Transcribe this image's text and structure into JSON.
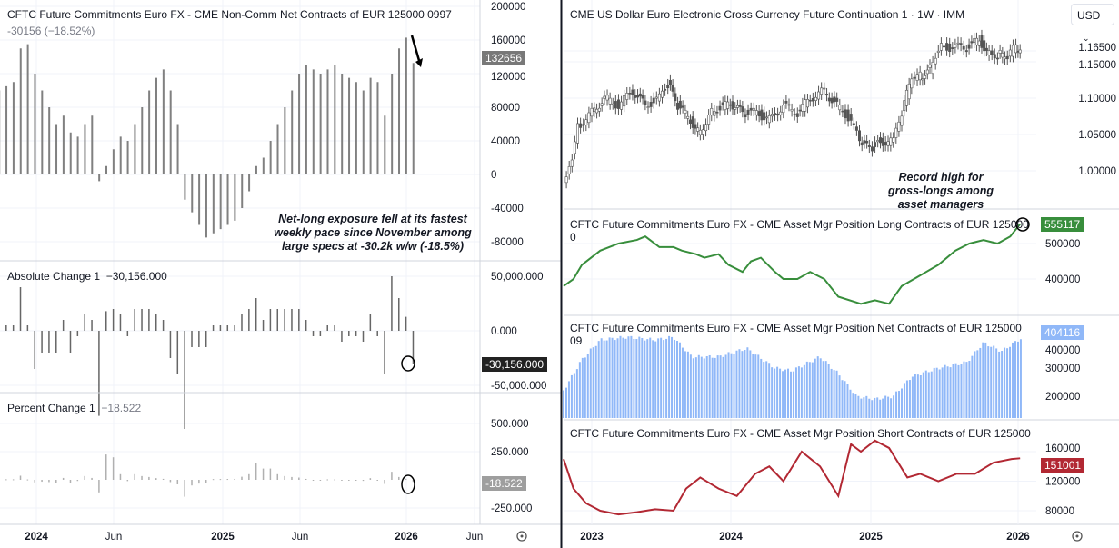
{
  "left": {
    "title": "CFTC Future Commitments Euro FX - CME Non-Comm Net Contracts of EUR 125000 0997",
    "subtitle": "-30156 (−18.52%)",
    "last_tag": "132656",
    "abs_title": "Absolute Change 1",
    "abs_value": "−30,156.000",
    "abs_tag": "-30,156.000",
    "pct_title": "Percent Change 1",
    "pct_value": "−18.522",
    "pct_tag": "-18.522",
    "note": "Net-long exposure fell at its fastest weekly pace since November among large specs at -30.2k w/w (-18.5%)",
    "time_ticks": [
      "2024",
      "Jun",
      "2025",
      "Jun",
      "2026",
      "Jun"
    ]
  },
  "right": {
    "title": "CME US Dollar Euro Electronic Cross Currency Future Continuation 1 · 1W · IMM",
    "currency": "USD",
    "long_title": "CFTC Future Commitments Euro FX - CME Asset Mgr Position Long Contracts of EUR 125000 0",
    "long_tag": "555117",
    "net_title": "CFTC Future Commitments Euro FX - CME Asset Mgr Position Net Contracts of EUR 125000 09",
    "net_tag": "404116",
    "short_title": "CFTC Future Commitments Euro FX - CME Asset Mgr Position Short Contracts of EUR 125000",
    "short_tag": "151001",
    "note": "Record high for gross-longs among asset managers",
    "time_ticks": [
      "2023",
      "2024",
      "2025",
      "2026"
    ]
  },
  "colors": {
    "bars": "#808080",
    "long": "#388e3c",
    "net": "#90b8f8",
    "short": "#b22833",
    "candle": "#555555"
  },
  "chart_data": [
    {
      "type": "bar",
      "title": "CFTC Future Commitments Euro FX - CME Non-Comm Net Contracts of EUR 125000 0997",
      "x_start_year": 2023.8,
      "x_step_years": 0.0385,
      "yticks": [
        200000,
        160000,
        120000,
        80000,
        40000,
        0,
        -40000,
        -80000
      ],
      "ylim": [
        -100000,
        210000
      ],
      "values": [
        100000,
        105000,
        110000,
        150000,
        155000,
        120000,
        100000,
        80000,
        60000,
        70000,
        50000,
        45000,
        60000,
        70000,
        -8000,
        10000,
        30000,
        45000,
        40000,
        60000,
        80000,
        100000,
        115000,
        125000,
        100000,
        60000,
        -30000,
        -45000,
        -60000,
        -75000,
        -70000,
        -65000,
        -60000,
        -55000,
        -40000,
        -20000,
        10000,
        20000,
        40000,
        60000,
        80000,
        100000,
        120000,
        130000,
        125000,
        120000,
        125000,
        130000,
        120000,
        115000,
        110000,
        100000,
        115000,
        110000,
        70000,
        120000,
        150000,
        162812,
        132656
      ]
    },
    {
      "type": "bar",
      "title": "Absolute Change 1",
      "yticks": [
        50000,
        0,
        -50000
      ],
      "last": -30156
    },
    {
      "type": "bar",
      "title": "Percent Change 1",
      "yticks": [
        500,
        250,
        -250
      ],
      "last": -18.522
    },
    {
      "type": "candlestick",
      "title": "CME US Dollar Euro Electronic Cross Currency Future Continuation 1 · 1W · IMM",
      "yticks": [
        1.165,
        1.15,
        1.1,
        1.05,
        1.0
      ],
      "points": [
        [
          2022.8,
          0.98
        ],
        [
          2022.84,
          1.0
        ],
        [
          2022.9,
          1.06
        ],
        [
          2023.0,
          1.08
        ],
        [
          2023.09,
          1.1
        ],
        [
          2023.19,
          1.09
        ],
        [
          2023.29,
          1.11
        ],
        [
          2023.38,
          1.09
        ],
        [
          2023.48,
          1.1
        ],
        [
          2023.54,
          1.12
        ],
        [
          2023.61,
          1.09
        ],
        [
          2023.7,
          1.07
        ],
        [
          2023.77,
          1.05
        ],
        [
          2023.83,
          1.08
        ],
        [
          2023.93,
          1.09
        ],
        [
          2024.0,
          1.09
        ],
        [
          2024.07,
          1.08
        ],
        [
          2024.17,
          1.08
        ],
        [
          2024.26,
          1.07
        ],
        [
          2024.36,
          1.09
        ],
        [
          2024.46,
          1.08
        ],
        [
          2024.55,
          1.1
        ],
        [
          2024.65,
          1.11
        ],
        [
          2024.74,
          1.09
        ],
        [
          2024.84,
          1.07
        ],
        [
          2024.9,
          1.04
        ],
        [
          2024.97,
          1.03
        ],
        [
          2025.03,
          1.04
        ],
        [
          2025.14,
          1.04
        ],
        [
          2025.2,
          1.08
        ],
        [
          2025.27,
          1.13
        ],
        [
          2025.33,
          1.13
        ],
        [
          2025.4,
          1.14
        ],
        [
          2025.46,
          1.17
        ],
        [
          2025.56,
          1.17
        ],
        [
          2025.66,
          1.17
        ],
        [
          2025.75,
          1.18
        ],
        [
          2025.82,
          1.16
        ],
        [
          2025.88,
          1.16
        ],
        [
          2025.95,
          1.16
        ],
        [
          2026.01,
          1.17
        ],
        [
          2026.04,
          1.165
        ]
      ]
    },
    {
      "type": "line",
      "title": "Asset Mgr Position Long",
      "yticks": [
        500000,
        400000
      ],
      "points": [
        [
          2022.8,
          380000
        ],
        [
          2022.87,
          400000
        ],
        [
          2022.93,
          440000
        ],
        [
          2023.06,
          480000
        ],
        [
          2023.19,
          500000
        ],
        [
          2023.32,
          510000
        ],
        [
          2023.38,
          520000
        ],
        [
          2023.48,
          490000
        ],
        [
          2023.58,
          490000
        ],
        [
          2023.64,
          480000
        ],
        [
          2023.74,
          470000
        ],
        [
          2023.8,
          460000
        ],
        [
          2023.9,
          470000
        ],
        [
          2023.97,
          440000
        ],
        [
          2024.07,
          420000
        ],
        [
          2024.13,
          450000
        ],
        [
          2024.2,
          460000
        ],
        [
          2024.3,
          420000
        ],
        [
          2024.36,
          400000
        ],
        [
          2024.46,
          400000
        ],
        [
          2024.55,
          420000
        ],
        [
          2024.65,
          400000
        ],
        [
          2024.75,
          350000
        ],
        [
          2024.91,
          330000
        ],
        [
          2025.01,
          340000
        ],
        [
          2025.11,
          330000
        ],
        [
          2025.2,
          380000
        ],
        [
          2025.33,
          410000
        ],
        [
          2025.46,
          440000
        ],
        [
          2025.58,
          480000
        ],
        [
          2025.68,
          500000
        ],
        [
          2025.78,
          510000
        ],
        [
          2025.88,
          500000
        ],
        [
          2025.97,
          520000
        ],
        [
          2026.04,
          555117
        ]
      ]
    },
    {
      "type": "bar",
      "title": "Asset Mgr Position Net",
      "yticks": [
        400000,
        300000,
        200000
      ],
      "points": [
        [
          2022.8,
          220000
        ],
        [
          2022.93,
          330000
        ],
        [
          2023.06,
          400000
        ],
        [
          2023.25,
          410000
        ],
        [
          2023.45,
          400000
        ],
        [
          2023.58,
          410000
        ],
        [
          2023.71,
          340000
        ],
        [
          2023.9,
          340000
        ],
        [
          2024.1,
          370000
        ],
        [
          2024.3,
          300000
        ],
        [
          2024.42,
          290000
        ],
        [
          2024.62,
          340000
        ],
        [
          2024.75,
          280000
        ],
        [
          2024.88,
          200000
        ],
        [
          2025.01,
          190000
        ],
        [
          2025.14,
          200000
        ],
        [
          2025.27,
          270000
        ],
        [
          2025.46,
          300000
        ],
        [
          2025.66,
          320000
        ],
        [
          2025.78,
          390000
        ],
        [
          2025.91,
          360000
        ],
        [
          2026.04,
          404116
        ]
      ]
    },
    {
      "type": "line",
      "title": "Asset Mgr Position Short",
      "yticks": [
        160000,
        120000,
        80000
      ],
      "points": [
        [
          2022.8,
          150000
        ],
        [
          2022.87,
          110000
        ],
        [
          2022.96,
          90000
        ],
        [
          2023.06,
          80000
        ],
        [
          2023.19,
          75000
        ],
        [
          2023.32,
          78000
        ],
        [
          2023.45,
          82000
        ],
        [
          2023.58,
          80000
        ],
        [
          2023.67,
          110000
        ],
        [
          2023.77,
          125000
        ],
        [
          2023.9,
          110000
        ],
        [
          2024.03,
          100000
        ],
        [
          2024.16,
          130000
        ],
        [
          2024.26,
          140000
        ],
        [
          2024.36,
          120000
        ],
        [
          2024.49,
          160000
        ],
        [
          2024.62,
          140000
        ],
        [
          2024.75,
          100000
        ],
        [
          2024.84,
          170000
        ],
        [
          2024.91,
          160000
        ],
        [
          2025.01,
          175000
        ],
        [
          2025.11,
          165000
        ],
        [
          2025.24,
          125000
        ],
        [
          2025.33,
          130000
        ],
        [
          2025.46,
          120000
        ],
        [
          2025.59,
          130000
        ],
        [
          2025.72,
          130000
        ],
        [
          2025.85,
          145000
        ],
        [
          2025.98,
          150000
        ],
        [
          2026.04,
          151001
        ]
      ]
    }
  ]
}
